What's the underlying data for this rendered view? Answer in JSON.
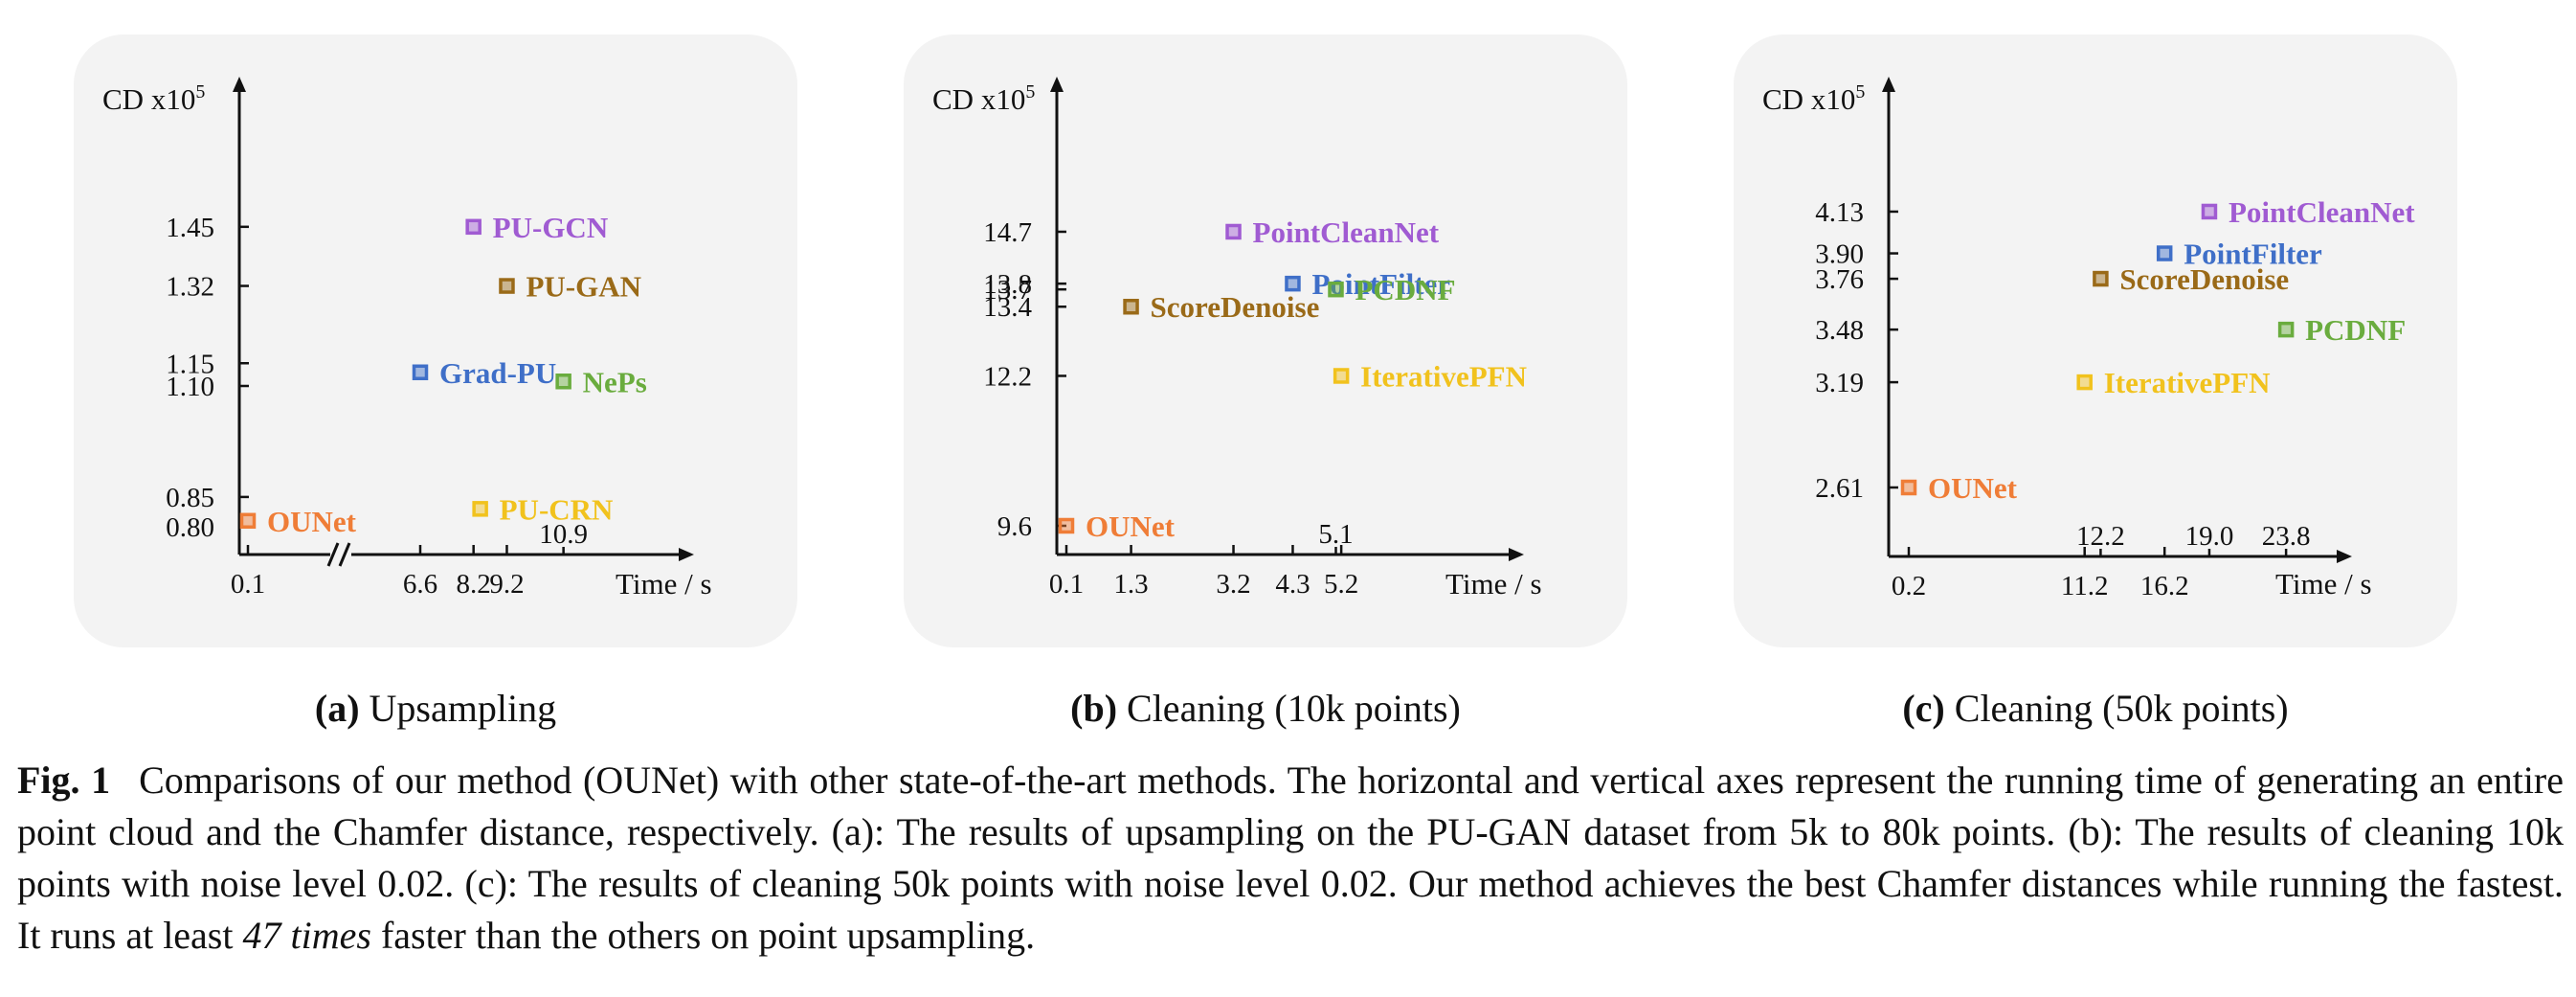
{
  "chart_data": [
    {
      "type": "scatter",
      "subcaption_tag": "(a)",
      "subcaption_text": "Upsampling",
      "xlabel": "Time / s",
      "ylabel_base": "CD x10",
      "ylabel_exp": "5",
      "axis_break": true,
      "x_ticks": [
        "0.1",
        "6.6",
        "8.2",
        "9.2"
      ],
      "y_ticks": [
        "0.80",
        "0.85",
        "1.10",
        "1.15",
        "1.32",
        "1.45"
      ],
      "points": [
        {
          "name": "OUNet",
          "x": 0.1,
          "y": 0.81,
          "color": "#ef7d37"
        },
        {
          "name": "PU-GCN",
          "x": 8.2,
          "y": 1.45,
          "color": "#a05bd2"
        },
        {
          "name": "PU-GAN",
          "x": 9.2,
          "y": 1.32,
          "color": "#9a6a18"
        },
        {
          "name": "Grad-PU",
          "x": 6.6,
          "y": 1.13,
          "color": "#3f6fc8"
        },
        {
          "name": "NePs",
          "x": 10.9,
          "y": 1.11,
          "color": "#6aac3e",
          "annotation": "10.9"
        },
        {
          "name": "PU-CRN",
          "x": 8.4,
          "y": 0.83,
          "color": "#f1c21d"
        }
      ]
    },
    {
      "type": "scatter",
      "subcaption_tag": "(b)",
      "subcaption_text": "Cleaning (10k points)",
      "xlabel": "Time / s",
      "ylabel_base": "CD x10",
      "ylabel_exp": "5",
      "axis_break": false,
      "x_ticks": [
        "0.1",
        "1.3",
        "3.2",
        "4.3",
        "5.2"
      ],
      "y_ticks": [
        "9.6",
        "12.2",
        "13.4",
        "13.7",
        "13.8",
        "14.7"
      ],
      "points": [
        {
          "name": "OUNet",
          "x": 0.1,
          "y": 9.6,
          "color": "#ef7d37"
        },
        {
          "name": "PointCleanNet",
          "x": 3.2,
          "y": 14.7,
          "color": "#a05bd2"
        },
        {
          "name": "PointFilter",
          "x": 4.3,
          "y": 13.8,
          "color": "#3f6fc8"
        },
        {
          "name": "PCDNF",
          "x": 5.1,
          "y": 13.7,
          "color": "#6aac3e",
          "annotation": "5.1"
        },
        {
          "name": "ScoreDenoise",
          "x": 1.3,
          "y": 13.4,
          "color": "#9a6a18"
        },
        {
          "name": "IterativePFN",
          "x": 5.2,
          "y": 12.2,
          "color": "#f1c21d"
        }
      ]
    },
    {
      "type": "scatter",
      "subcaption_tag": "(c)",
      "subcaption_text": "Cleaning (50k points)",
      "xlabel": "Time / s",
      "ylabel_base": "CD x10",
      "ylabel_exp": "5",
      "axis_break": false,
      "x_ticks": [
        "0.2",
        "11.2",
        "16.2"
      ],
      "y_ticks": [
        "2.61",
        "3.19",
        "3.48",
        "3.76",
        "3.90",
        "4.13"
      ],
      "points": [
        {
          "name": "OUNet",
          "x": 0.2,
          "y": 2.61,
          "color": "#ef7d37"
        },
        {
          "name": "PointCleanNet",
          "x": 19.0,
          "y": 4.13,
          "color": "#a05bd2",
          "annotation": "19.0"
        },
        {
          "name": "PointFilter",
          "x": 16.2,
          "y": 3.9,
          "color": "#3f6fc8"
        },
        {
          "name": "ScoreDenoise",
          "x": 12.2,
          "y": 3.76,
          "color": "#9a6a18",
          "annotation": "12.2"
        },
        {
          "name": "PCDNF",
          "x": 23.8,
          "y": 3.48,
          "color": "#6aac3e",
          "annotation": "23.8"
        },
        {
          "name": "IterativePFN",
          "x": 11.2,
          "y": 3.19,
          "color": "#f1c21d"
        }
      ]
    }
  ],
  "caption": {
    "label": "Fig. 1",
    "part1": "Comparisons of our method (OUNet) with other state-of-the-art methods. The horizontal and vertical axes represent the running time of generating an entire point cloud and the Chamfer distance, respectively. (a): The results of upsampling on the PU-GAN dataset from 5k to 80k points. (b): The results of cleaning 10k points with noise level 0.02. (c): The results of cleaning 50k points with noise level 0.02. Our method achieves the best Chamfer distances while running the fastest. It runs at least ",
    "emph": "47 times",
    "part2": " faster than the others on point upsampling."
  }
}
